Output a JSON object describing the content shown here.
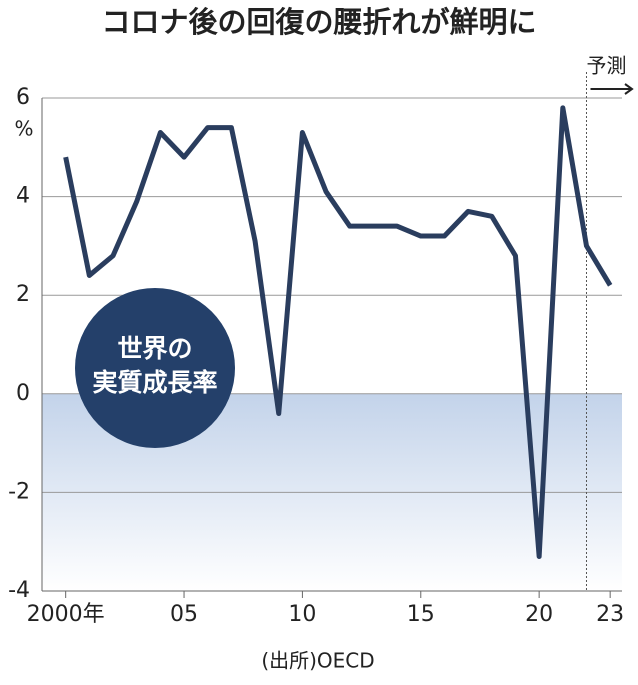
{
  "chart_data": {
    "type": "line",
    "title": "コロナ後の回復の腰折れが鮮明に",
    "x": [
      2000,
      2001,
      2002,
      2003,
      2004,
      2005,
      2006,
      2007,
      2008,
      2009,
      2010,
      2011,
      2012,
      2013,
      2014,
      2015,
      2016,
      2017,
      2018,
      2019,
      2020,
      2021,
      2022,
      2023
    ],
    "values": [
      4.8,
      2.4,
      2.8,
      3.9,
      5.3,
      4.8,
      5.4,
      5.4,
      3.1,
      -0.4,
      5.3,
      4.1,
      3.4,
      3.4,
      3.4,
      3.2,
      3.2,
      3.7,
      3.6,
      2.8,
      -3.3,
      5.8,
      3.0,
      2.2
    ],
    "color": "#2a3d5e",
    "xlim": [
      1999,
      2023.5
    ],
    "ylim": [
      -4,
      6
    ],
    "xticks": [
      {
        "value": 2000,
        "label": "2000年"
      },
      {
        "value": 2005,
        "label": "05"
      },
      {
        "value": 2010,
        "label": "10"
      },
      {
        "value": 2015,
        "label": "15"
      },
      {
        "value": 2020,
        "label": "20"
      },
      {
        "value": 2023,
        "label": "23"
      }
    ],
    "yticks": [
      -4,
      -2,
      0,
      2,
      4,
      6
    ],
    "y_unit": "%",
    "grid": true,
    "forecast_start": 2022,
    "forecast_label": "予測",
    "badge": [
      "世界の",
      "実質成長率"
    ],
    "badge_color": "#24406a",
    "source": "(出所)OECD"
  }
}
